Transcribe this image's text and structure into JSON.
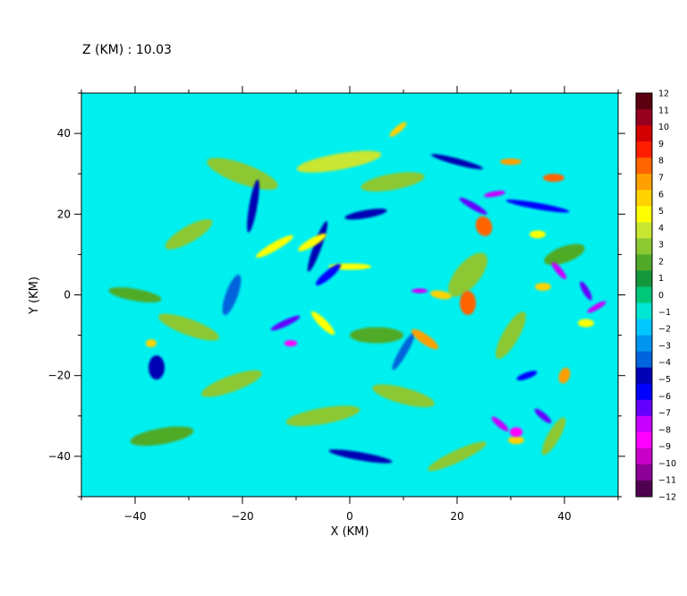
{
  "header": {
    "level_label": "Z (KM) : 10.03"
  },
  "chart_data": {
    "type": "heatmap",
    "title": "Z (KM) : 10.03",
    "xlabel": "X (KM)",
    "ylabel": "Y (KM)",
    "xlim": [
      -50,
      50
    ],
    "ylim": [
      -50,
      50
    ],
    "x_ticks": [
      -40,
      -20,
      0,
      20,
      40
    ],
    "y_ticks": [
      -40,
      -20,
      0,
      20,
      40
    ],
    "x_tick_labels": [
      "−40",
      "−20",
      "0",
      "20",
      "40"
    ],
    "y_tick_labels": [
      "−40",
      "−20",
      "0",
      "20",
      "40"
    ],
    "grid": false,
    "colorbar": {
      "position": "right",
      "min": -12,
      "max": 12,
      "labels": [
        "12",
        "11",
        "10",
        "9",
        "8",
        "7",
        "6",
        "5",
        "4",
        "3",
        "2",
        "1",
        "0",
        "−1",
        "−2",
        "−3",
        "−4",
        "−5",
        "−6",
        "−7",
        "−8",
        "−9",
        "−10",
        "−11",
        "−12"
      ],
      "levels": [
        {
          "value": 12,
          "color": "#5a0010"
        },
        {
          "value": 11,
          "color": "#96001e"
        },
        {
          "value": 10,
          "color": "#d20000"
        },
        {
          "value": 9,
          "color": "#ff1e00"
        },
        {
          "value": 8,
          "color": "#ff6400"
        },
        {
          "value": 7,
          "color": "#ffa000"
        },
        {
          "value": 6,
          "color": "#ffd200"
        },
        {
          "value": 5,
          "color": "#ffff00"
        },
        {
          "value": 4,
          "color": "#c8e632"
        },
        {
          "value": 3,
          "color": "#8cc832"
        },
        {
          "value": 2,
          "color": "#50aa28"
        },
        {
          "value": 1,
          "color": "#14963c"
        },
        {
          "value": 0,
          "color": "#00c878"
        },
        {
          "value": -1,
          "color": "#00e6d2"
        },
        {
          "value": -2,
          "color": "#00c8ff"
        },
        {
          "value": -3,
          "color": "#0096f0"
        },
        {
          "value": -4,
          "color": "#0064dc"
        },
        {
          "value": -5,
          "color": "#0000b4"
        },
        {
          "value": -6,
          "color": "#0000ff"
        },
        {
          "value": -7,
          "color": "#6400ff"
        },
        {
          "value": -8,
          "color": "#c800ff"
        },
        {
          "value": -9,
          "color": "#ff00ff"
        },
        {
          "value": -10,
          "color": "#c800c8"
        },
        {
          "value": -11,
          "color": "#8c0096"
        },
        {
          "value": -12,
          "color": "#500050"
        }
      ]
    },
    "background_color": "#00f0f0",
    "features": [
      {
        "x": -12,
        "y": -7,
        "value": -7,
        "rx": 3.0,
        "ry": 0.8,
        "angle": 25
      },
      {
        "x": -11,
        "y": -12,
        "value": -9,
        "rx": 1.2,
        "ry": 0.8,
        "angle": 0
      },
      {
        "x": -6,
        "y": 12,
        "value": -5,
        "rx": 5.0,
        "ry": 1.0,
        "angle": 70
      },
      {
        "x": -18,
        "y": 22,
        "value": -5,
        "rx": 5.0,
        "ry": 1.0,
        "angle": 80
      },
      {
        "x": -4,
        "y": 5,
        "value": -6,
        "rx": 3.0,
        "ry": 1.0,
        "angle": 40
      },
      {
        "x": 3,
        "y": 20,
        "value": -5,
        "rx": 4.0,
        "ry": 1.0,
        "angle": 10
      },
      {
        "x": 23,
        "y": 22,
        "value": -7,
        "rx": 3.0,
        "ry": 0.8,
        "angle": -30
      },
      {
        "x": 27,
        "y": 25,
        "value": -8,
        "rx": 2.0,
        "ry": 0.7,
        "angle": 10
      },
      {
        "x": 35,
        "y": 22,
        "value": -6,
        "rx": 6.0,
        "ry": 0.8,
        "angle": -10
      },
      {
        "x": 39,
        "y": 6,
        "value": -8,
        "rx": 2.0,
        "ry": 0.8,
        "angle": -50
      },
      {
        "x": 44,
        "y": 1,
        "value": -7,
        "rx": 2.0,
        "ry": 0.8,
        "angle": -60
      },
      {
        "x": 46,
        "y": -3,
        "value": -8,
        "rx": 2.0,
        "ry": 0.7,
        "angle": 30
      },
      {
        "x": 28,
        "y": -32,
        "value": -8,
        "rx": 2.0,
        "ry": 0.8,
        "angle": -40
      },
      {
        "x": 31,
        "y": -34,
        "value": -9,
        "rx": 1.2,
        "ry": 1.2,
        "angle": 0
      },
      {
        "x": 36,
        "y": -30,
        "value": -7,
        "rx": 2.0,
        "ry": 0.8,
        "angle": -40
      },
      {
        "x": 33,
        "y": -20,
        "value": -6,
        "rx": 2.0,
        "ry": 0.8,
        "angle": 20
      },
      {
        "x": 13,
        "y": 1,
        "value": -8,
        "rx": 1.5,
        "ry": 0.6,
        "angle": 0
      },
      {
        "x": 2,
        "y": -40,
        "value": -5,
        "rx": 6.0,
        "ry": 1.0,
        "angle": -10
      },
      {
        "x": 20,
        "y": 33,
        "value": -5,
        "rx": 5.0,
        "ry": 0.8,
        "angle": -15
      },
      {
        "x": -36,
        "y": -18,
        "value": -5,
        "rx": 1.5,
        "ry": 3.0,
        "angle": 0
      },
      {
        "x": 10,
        "y": -14,
        "value": -4,
        "rx": 4.0,
        "ry": 1.0,
        "angle": 60
      },
      {
        "x": -22,
        "y": 0,
        "value": -4,
        "rx": 4.0,
        "ry": 1.5,
        "angle": 70
      },
      {
        "x": 14,
        "y": -11,
        "value": 7,
        "rx": 3.0,
        "ry": 1.2,
        "angle": -35
      },
      {
        "x": 22,
        "y": -2,
        "value": 8,
        "rx": 1.5,
        "ry": 3.0,
        "angle": 0
      },
      {
        "x": 25,
        "y": 17,
        "value": 8,
        "rx": 1.5,
        "ry": 2.5,
        "angle": 20
      },
      {
        "x": 38,
        "y": 29,
        "value": 8,
        "rx": 2.0,
        "ry": 1.0,
        "angle": 0
      },
      {
        "x": 30,
        "y": 33,
        "value": 7,
        "rx": 2.0,
        "ry": 0.8,
        "angle": 0
      },
      {
        "x": 17,
        "y": 0,
        "value": 6,
        "rx": 2.0,
        "ry": 1.0,
        "angle": -10
      },
      {
        "x": 40,
        "y": -20,
        "value": 7,
        "rx": 1.0,
        "ry": 2.0,
        "angle": -20
      },
      {
        "x": 31,
        "y": -36,
        "value": 6,
        "rx": 1.5,
        "ry": 1.0,
        "angle": 0
      },
      {
        "x": 9,
        "y": 41,
        "value": 6,
        "rx": 2.0,
        "ry": 0.8,
        "angle": 40
      },
      {
        "x": -7,
        "y": 13,
        "value": 5,
        "rx": 3.0,
        "ry": 1.0,
        "angle": 30
      },
      {
        "x": -14,
        "y": 12,
        "value": 5,
        "rx": 4.0,
        "ry": 1.0,
        "angle": 30
      },
      {
        "x": -5,
        "y": -7,
        "value": 5,
        "rx": 3.0,
        "ry": 1.0,
        "angle": -45
      },
      {
        "x": 0,
        "y": 7,
        "value": 5,
        "rx": 4.0,
        "ry": 0.8,
        "angle": 0
      },
      {
        "x": -37,
        "y": -12,
        "value": 6,
        "rx": 1.0,
        "ry": 1.0,
        "angle": 0
      },
      {
        "x": 35,
        "y": 15,
        "value": 5,
        "rx": 1.5,
        "ry": 1.0,
        "angle": 0
      },
      {
        "x": 36,
        "y": 2,
        "value": 6,
        "rx": 1.5,
        "ry": 1.0,
        "angle": 0
      },
      {
        "x": 44,
        "y": -7,
        "value": 5,
        "rx": 1.5,
        "ry": 1.0,
        "angle": 0
      },
      {
        "x": -2,
        "y": 33,
        "value": 4,
        "rx": 8.0,
        "ry": 2.0,
        "angle": 10
      },
      {
        "x": -20,
        "y": 30,
        "value": 3,
        "rx": 7.0,
        "ry": 2.5,
        "angle": -20
      },
      {
        "x": 8,
        "y": 28,
        "value": 3,
        "rx": 6.0,
        "ry": 2.0,
        "angle": 10
      },
      {
        "x": 22,
        "y": 5,
        "value": 3,
        "rx": 5.0,
        "ry": 3.0,
        "angle": 50
      },
      {
        "x": -30,
        "y": -8,
        "value": 3,
        "rx": 6.0,
        "ry": 2.0,
        "angle": -20
      },
      {
        "x": -22,
        "y": -22,
        "value": 3,
        "rx": 6.0,
        "ry": 2.0,
        "angle": 20
      },
      {
        "x": 10,
        "y": -25,
        "value": 3,
        "rx": 6.0,
        "ry": 2.0,
        "angle": -15
      },
      {
        "x": -5,
        "y": -30,
        "value": 3,
        "rx": 7.0,
        "ry": 2.0,
        "angle": 10
      },
      {
        "x": 20,
        "y": -40,
        "value": 3,
        "rx": 6.0,
        "ry": 1.5,
        "angle": 25
      },
      {
        "x": -30,
        "y": 15,
        "value": 3,
        "rx": 5.0,
        "ry": 2.0,
        "angle": 30
      },
      {
        "x": 30,
        "y": -10,
        "value": 3,
        "rx": 5.0,
        "ry": 2.0,
        "angle": 60
      },
      {
        "x": 38,
        "y": -35,
        "value": 3,
        "rx": 4.0,
        "ry": 1.5,
        "angle": 60
      },
      {
        "x": -40,
        "y": 0,
        "value": 2,
        "rx": 5.0,
        "ry": 1.5,
        "angle": -10
      },
      {
        "x": -35,
        "y": -35,
        "value": 2,
        "rx": 6.0,
        "ry": 2.0,
        "angle": 10
      },
      {
        "x": 40,
        "y": 10,
        "value": 2,
        "rx": 4.0,
        "ry": 2.0,
        "angle": 20
      },
      {
        "x": 5,
        "y": -10,
        "value": 2,
        "rx": 5.0,
        "ry": 2.0,
        "angle": 0
      }
    ]
  }
}
